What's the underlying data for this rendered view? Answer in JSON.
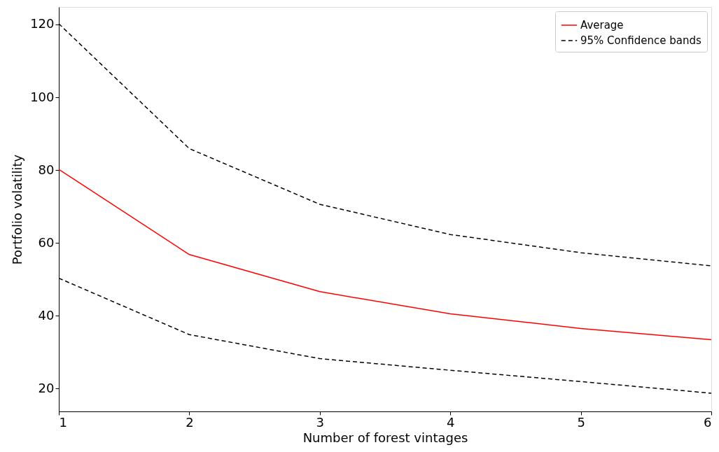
{
  "chart_data": {
    "type": "line",
    "xlabel": "Number of forest vintages",
    "ylabel": "Portfolio volatility",
    "x": [
      1,
      2,
      3,
      4,
      5,
      6
    ],
    "series": [
      {
        "name": "Average",
        "color": "#ff0000",
        "line_style": "solid",
        "values": [
          80.2,
          56.8,
          46.6,
          40.5,
          36.5,
          33.4
        ]
      },
      {
        "name": "95% Confidence bands",
        "color": "#000000",
        "line_style": "dashed",
        "values": [
          120.2,
          85.9,
          70.6,
          62.3,
          57.3,
          53.7
        ]
      },
      {
        "color": "#000000",
        "line_style": "dashed",
        "values": [
          50.3,
          34.8,
          28.2,
          25.0,
          21.9,
          18.7
        ]
      }
    ],
    "xlim": [
      1,
      6
    ],
    "xticks": [
      1,
      2,
      3,
      4,
      5,
      6
    ],
    "ylim": [
      13.7,
      124.8
    ],
    "yticks": [
      20,
      40,
      60,
      80,
      100,
      120
    ],
    "grid": false,
    "legend": "top right",
    "marker": "none"
  }
}
